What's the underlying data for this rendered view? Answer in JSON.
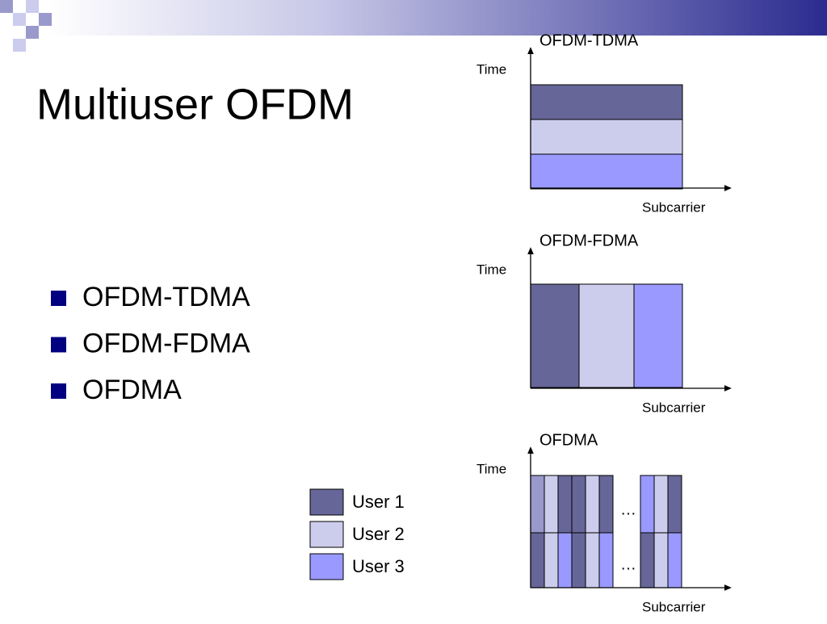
{
  "header": {
    "title": "Multiuser OFDM"
  },
  "bullets": [
    "OFDM-TDMA",
    "OFDM-FDMA",
    "OFDMA"
  ],
  "diagrams": [
    {
      "title": "OFDM-TDMA",
      "y_label": "Time",
      "x_label": "Subcarrier"
    },
    {
      "title": "OFDM-FDMA",
      "y_label": "Time",
      "x_label": "Subcarrier"
    },
    {
      "title": "OFDMA",
      "y_label": "Time",
      "x_label": "Subcarrier",
      "ellipsis": [
        "…",
        "…"
      ]
    }
  ],
  "legend": [
    "User 1",
    "User 2",
    "User 3"
  ]
}
